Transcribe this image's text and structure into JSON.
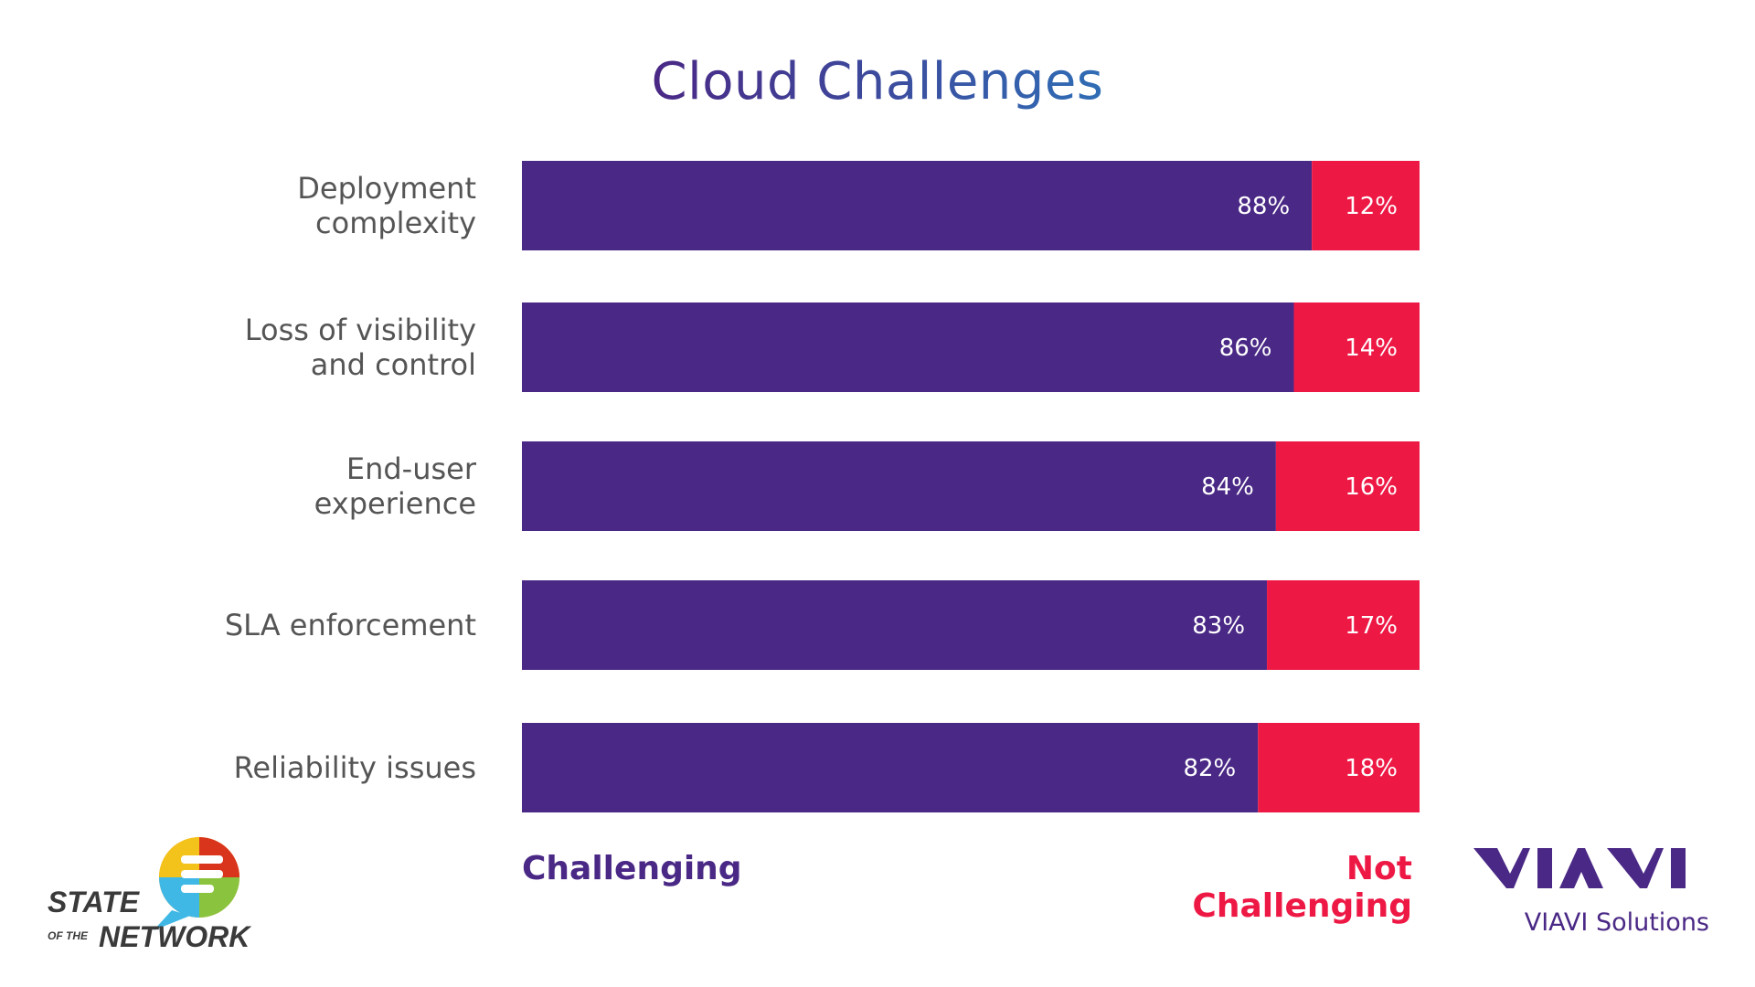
{
  "chart_data": {
    "type": "bar",
    "orientation": "horizontal",
    "stacked": true,
    "title": "Cloud Challenges",
    "categories": [
      [
        "Deployment",
        "complexity"
      ],
      [
        "Loss of visibility",
        "and control"
      ],
      [
        "End-user",
        "experience"
      ],
      [
        "SLA enforcement"
      ],
      [
        "Reliability issues"
      ]
    ],
    "series": [
      {
        "name": "Challenging",
        "color": "#4a2885",
        "values": [
          88,
          86,
          84,
          83,
          82
        ],
        "labels": [
          "88%",
          "86%",
          "84%",
          "83%",
          "82%"
        ]
      },
      {
        "name": "Not Challenging",
        "color": "#ee1845",
        "values": [
          12,
          14,
          16,
          17,
          18
        ],
        "labels": [
          "12%",
          "14%",
          "16%",
          "17%",
          "18%"
        ]
      }
    ],
    "xlim": [
      0,
      100
    ],
    "grid": false,
    "legend_placement": "bottom"
  },
  "colors": {
    "title_start": "#4a2885",
    "title_end": "#2f6db5",
    "category_text": "#555555",
    "value_text": "#ffffff"
  },
  "branding": {
    "left_logo": {
      "line1": "STATE",
      "line2": "OF THE",
      "line3": "NETWORK"
    },
    "right_logo": {
      "mark": "VIAVI",
      "subtitle": "VIAVI Solutions"
    }
  }
}
